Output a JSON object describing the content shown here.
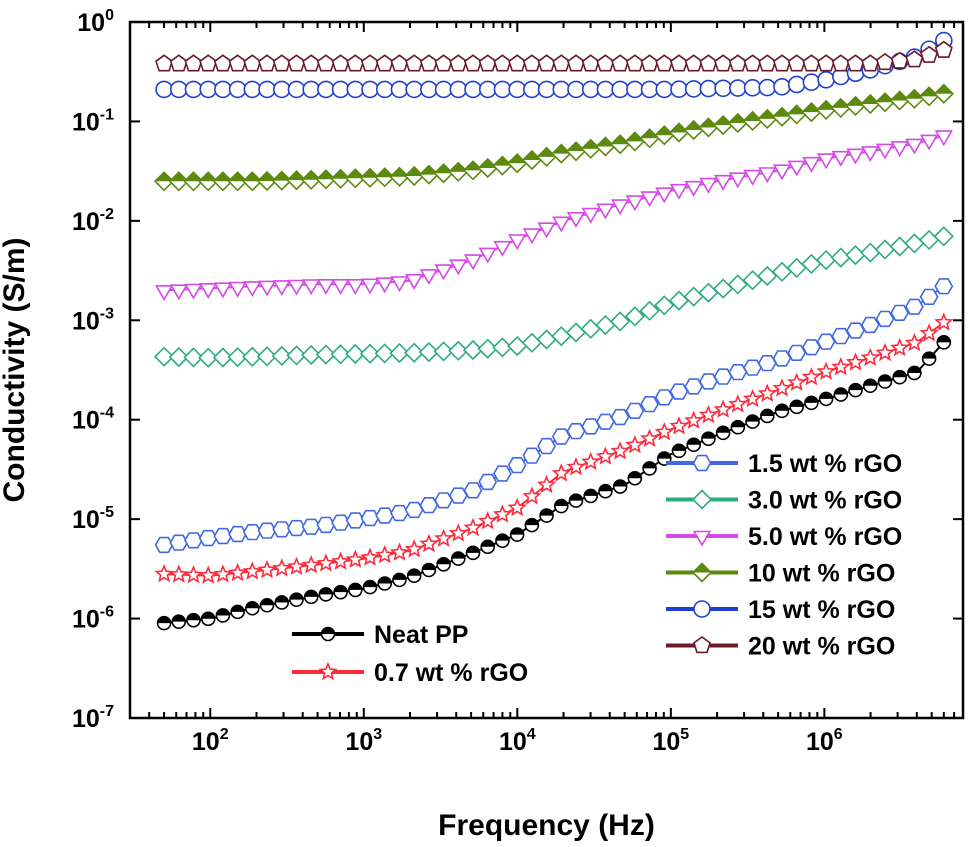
{
  "chart_data": {
    "type": "scatter",
    "xlabel": "Frequency (Hz)",
    "ylabel": "Conductivity (S/m)",
    "xscale": "log",
    "yscale": "log",
    "xlim": [
      30,
      8000000
    ],
    "ylim": [
      1e-07,
      1
    ],
    "x_ticks": [
      {
        "value": 100,
        "base": "10",
        "exp": "2"
      },
      {
        "value": 1000,
        "base": "10",
        "exp": "3"
      },
      {
        "value": 10000,
        "base": "10",
        "exp": "4"
      },
      {
        "value": 100000,
        "base": "10",
        "exp": "5"
      },
      {
        "value": 1000000,
        "base": "10",
        "exp": "6"
      }
    ],
    "y_ticks": [
      {
        "value": 1e-07,
        "base": "10",
        "exp": "-7"
      },
      {
        "value": 1e-06,
        "base": "10",
        "exp": "-6"
      },
      {
        "value": 1e-05,
        "base": "10",
        "exp": "-5"
      },
      {
        "value": 0.0001,
        "base": "10",
        "exp": "-4"
      },
      {
        "value": 0.001,
        "base": "10",
        "exp": "-3"
      },
      {
        "value": 0.01,
        "base": "10",
        "exp": "-2"
      },
      {
        "value": 0.1,
        "base": "10",
        "exp": "-1"
      },
      {
        "value": 1,
        "base": "10",
        "exp": "0"
      }
    ],
    "legends": [
      {
        "placement": "bottom-left",
        "entries": [
          "Neat PP",
          "0.7 wt % rGO"
        ]
      },
      {
        "placement": "bottom-right",
        "entries": [
          "1.5 wt % rGO",
          "3.0 wt % rGO",
          "5.0 wt % rGO",
          "10 wt % rGO",
          "15 wt % rGO",
          "20 wt % rGO"
        ]
      }
    ],
    "series": [
      {
        "name": "Neat PP",
        "color": "#000000",
        "marker": "half-circle",
        "points": [
          [
            50,
            9e-07
          ],
          [
            100,
            1e-06
          ],
          [
            200,
            1.3e-06
          ],
          [
            500,
            1.7e-06
          ],
          [
            1000,
            2e-06
          ],
          [
            2000,
            2.6e-06
          ],
          [
            5000,
            4.5e-06
          ],
          [
            10000,
            7e-06
          ],
          [
            20000,
            1.4e-05
          ],
          [
            50000,
            2.2e-05
          ],
          [
            100000,
            4.5e-05
          ],
          [
            200000,
            7e-05
          ],
          [
            500000,
            0.00012
          ],
          [
            1000000,
            0.00016
          ],
          [
            2000000,
            0.00022
          ],
          [
            4000000,
            0.0003
          ],
          [
            6000000,
            0.0006
          ]
        ]
      },
      {
        "name": "0.7 wt % rGO",
        "color": "#ff2a3c",
        "marker": "star",
        "points": [
          [
            50,
            2.8e-06
          ],
          [
            100,
            2.7e-06
          ],
          [
            200,
            3e-06
          ],
          [
            500,
            3.5e-06
          ],
          [
            1000,
            4e-06
          ],
          [
            2000,
            4.8e-06
          ],
          [
            5000,
            8e-06
          ],
          [
            10000,
            1.3e-05
          ],
          [
            20000,
            3e-05
          ],
          [
            50000,
            5e-05
          ],
          [
            100000,
            8e-05
          ],
          [
            200000,
            0.00012
          ],
          [
            500000,
            0.0002
          ],
          [
            1000000,
            0.0003
          ],
          [
            2000000,
            0.00042
          ],
          [
            4000000,
            0.0006
          ],
          [
            6000000,
            0.00095
          ]
        ]
      },
      {
        "name": "1.5 wt % rGO",
        "color": "#4169e1",
        "marker": "hexagon",
        "points": [
          [
            50,
            5.5e-06
          ],
          [
            100,
            6.5e-06
          ],
          [
            200,
            7.5e-06
          ],
          [
            500,
            8.5e-06
          ],
          [
            1000,
            1e-05
          ],
          [
            2000,
            1.2e-05
          ],
          [
            5000,
            1.9e-05
          ],
          [
            10000,
            3.5e-05
          ],
          [
            20000,
            7e-05
          ],
          [
            50000,
            0.00011
          ],
          [
            100000,
            0.00018
          ],
          [
            200000,
            0.00026
          ],
          [
            500000,
            0.0004
          ],
          [
            1000000,
            0.0006
          ],
          [
            2000000,
            0.0009
          ],
          [
            4000000,
            0.0014
          ],
          [
            6000000,
            0.0022
          ]
        ]
      },
      {
        "name": "3.0 wt % rGO",
        "color": "#2eab82",
        "marker": "diamond",
        "points": [
          [
            50,
            0.00043
          ],
          [
            100,
            0.00042
          ],
          [
            200,
            0.00043
          ],
          [
            500,
            0.00045
          ],
          [
            1000,
            0.00046
          ],
          [
            2000,
            0.00047
          ],
          [
            5000,
            0.0005
          ],
          [
            10000,
            0.00055
          ],
          [
            20000,
            0.0007
          ],
          [
            50000,
            0.001
          ],
          [
            100000,
            0.0015
          ],
          [
            200000,
            0.002
          ],
          [
            500000,
            0.003
          ],
          [
            1000000,
            0.004
          ],
          [
            2000000,
            0.0048
          ],
          [
            4000000,
            0.006
          ],
          [
            6000000,
            0.007
          ]
        ]
      },
      {
        "name": "5.0 wt % rGO",
        "color": "#d44ae6",
        "marker": "triangle-down",
        "points": [
          [
            50,
            0.002
          ],
          [
            100,
            0.0021
          ],
          [
            200,
            0.0022
          ],
          [
            500,
            0.0023
          ],
          [
            1000,
            0.0023
          ],
          [
            2000,
            0.0025
          ],
          [
            5000,
            0.004
          ],
          [
            10000,
            0.0065
          ],
          [
            20000,
            0.01
          ],
          [
            50000,
            0.015
          ],
          [
            100000,
            0.02
          ],
          [
            200000,
            0.025
          ],
          [
            500000,
            0.032
          ],
          [
            1000000,
            0.042
          ],
          [
            2000000,
            0.05
          ],
          [
            4000000,
            0.06
          ],
          [
            6000000,
            0.072
          ]
        ]
      },
      {
        "name": "10 wt % rGO",
        "color": "#5b8a0f",
        "marker": "diamond-half",
        "points": [
          [
            50,
            0.025
          ],
          [
            100,
            0.025
          ],
          [
            200,
            0.025
          ],
          [
            500,
            0.026
          ],
          [
            1000,
            0.027
          ],
          [
            2000,
            0.028
          ],
          [
            5000,
            0.032
          ],
          [
            10000,
            0.038
          ],
          [
            20000,
            0.048
          ],
          [
            50000,
            0.06
          ],
          [
            100000,
            0.075
          ],
          [
            200000,
            0.09
          ],
          [
            500000,
            0.11
          ],
          [
            1000000,
            0.13
          ],
          [
            2000000,
            0.15
          ],
          [
            4000000,
            0.17
          ],
          [
            6000000,
            0.19
          ]
        ]
      },
      {
        "name": "15 wt % rGO",
        "color": "#1f3fd0",
        "marker": "circle",
        "points": [
          [
            50,
            0.21
          ],
          [
            100,
            0.21
          ],
          [
            200,
            0.21
          ],
          [
            500,
            0.21
          ],
          [
            1000,
            0.21
          ],
          [
            2000,
            0.21
          ],
          [
            5000,
            0.21
          ],
          [
            10000,
            0.21
          ],
          [
            20000,
            0.21
          ],
          [
            50000,
            0.21
          ],
          [
            100000,
            0.21
          ],
          [
            200000,
            0.215
          ],
          [
            500000,
            0.22
          ],
          [
            1000000,
            0.26
          ],
          [
            2000000,
            0.33
          ],
          [
            4000000,
            0.45
          ],
          [
            6000000,
            0.65
          ]
        ]
      },
      {
        "name": "20 wt % rGO",
        "color": "#6b1a2a",
        "marker": "pentagon",
        "points": [
          [
            50,
            0.38
          ],
          [
            100,
            0.38
          ],
          [
            200,
            0.38
          ],
          [
            500,
            0.38
          ],
          [
            1000,
            0.38
          ],
          [
            2000,
            0.38
          ],
          [
            5000,
            0.38
          ],
          [
            10000,
            0.38
          ],
          [
            20000,
            0.38
          ],
          [
            50000,
            0.38
          ],
          [
            100000,
            0.38
          ],
          [
            200000,
            0.38
          ],
          [
            500000,
            0.38
          ],
          [
            1000000,
            0.38
          ],
          [
            2000000,
            0.38
          ],
          [
            4000000,
            0.42
          ],
          [
            6000000,
            0.52
          ]
        ]
      }
    ]
  }
}
